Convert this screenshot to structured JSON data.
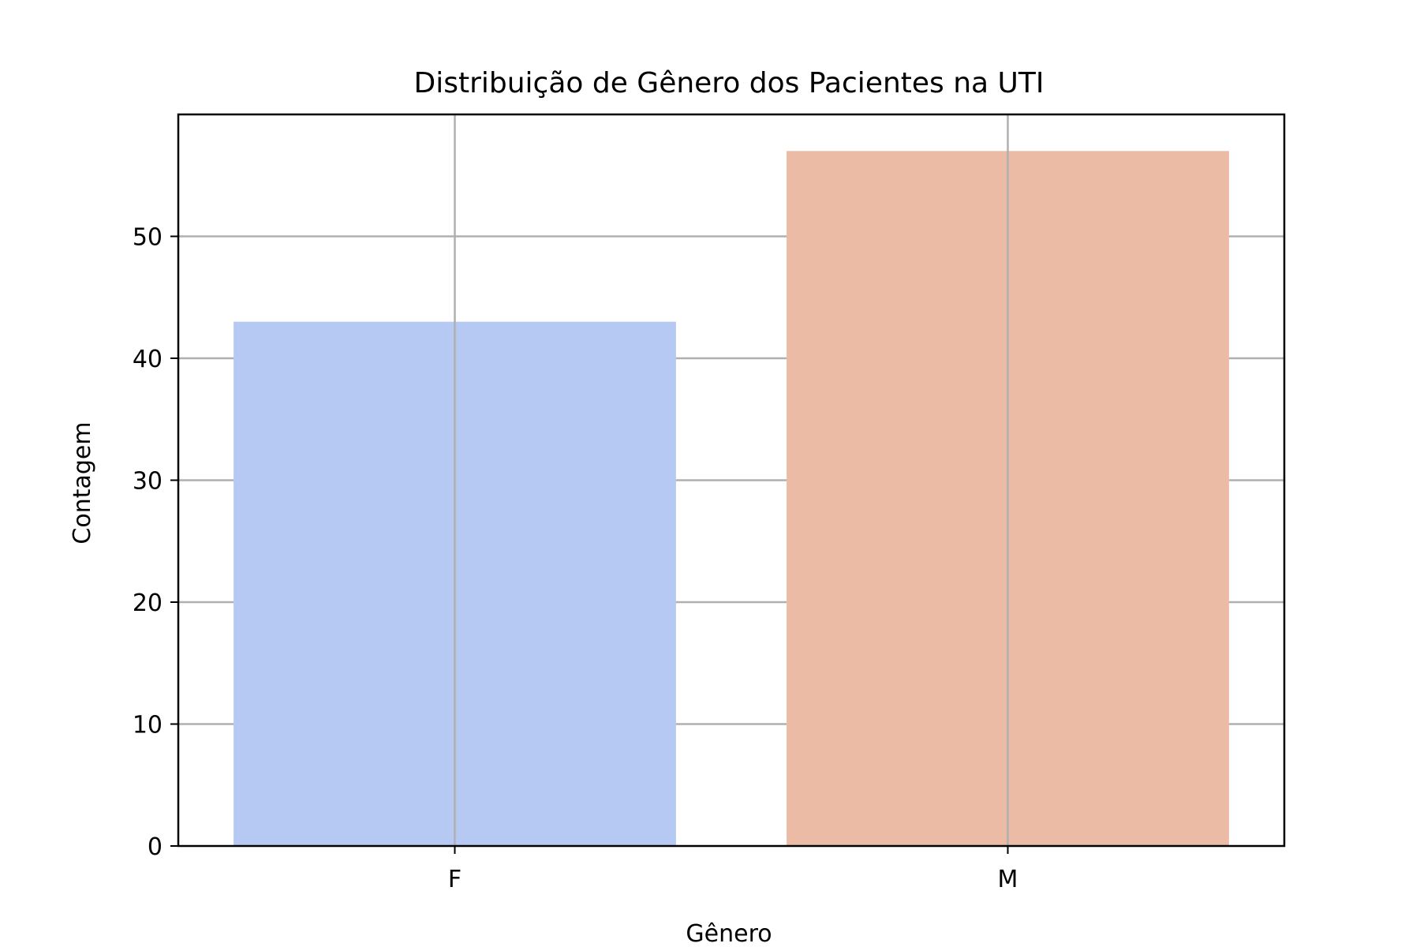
{
  "chart_data": {
    "type": "bar",
    "title": "Distribuição de Gênero dos Pacientes na UTI",
    "xlabel": "Gênero",
    "ylabel": "Contagem",
    "categories": [
      "F",
      "M"
    ],
    "values": [
      43,
      57
    ],
    "colors": [
      "#b5c9f2",
      "#ecbba6"
    ],
    "ylim": [
      0,
      60
    ],
    "yticks": [
      0,
      10,
      20,
      30,
      40,
      50
    ],
    "grid": true,
    "legend": "none"
  }
}
